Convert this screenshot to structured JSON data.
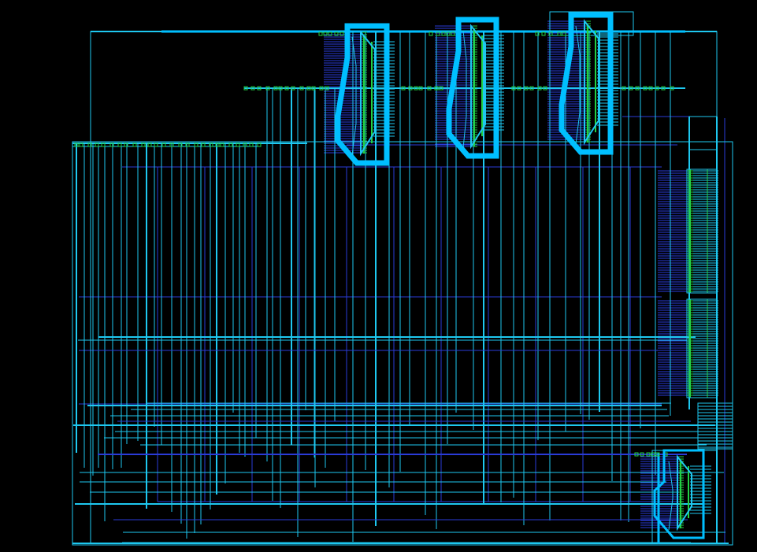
{
  "viewer": {
    "background_color": "#000000",
    "wire_color": "#1ec8f0",
    "bus_color": "#00bfff",
    "net_color": "#2a3bd8",
    "pin_color": "#22d044"
  },
  "schematic": {
    "top_instances": [
      {
        "id": "mux-block-1",
        "highlighted": true
      },
      {
        "id": "mux-block-2",
        "highlighted": true
      },
      {
        "id": "mux-block-3",
        "highlighted": true
      }
    ],
    "side_instances": [
      {
        "id": "register-bank-upper"
      },
      {
        "id": "register-bank-lower"
      }
    ],
    "bottom_instances": [
      {
        "id": "mux-block-4",
        "highlighted": false
      }
    ]
  }
}
